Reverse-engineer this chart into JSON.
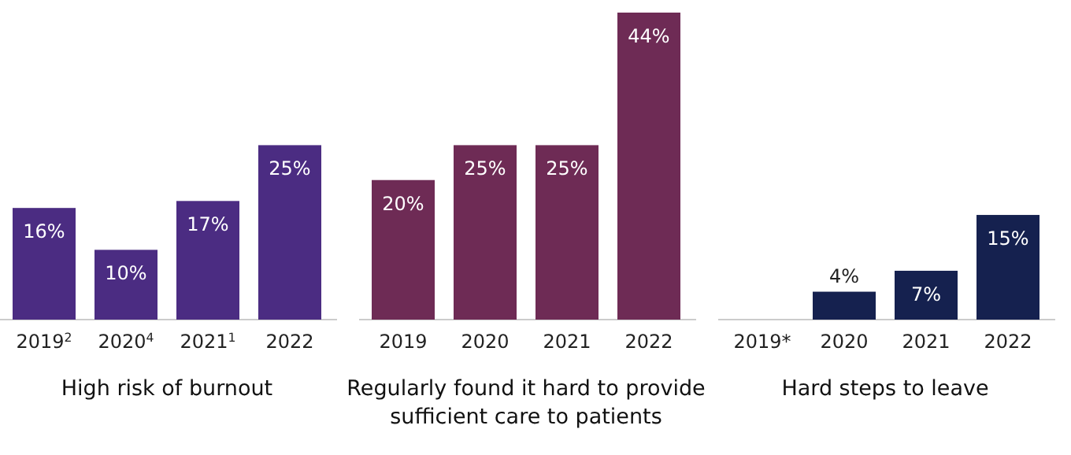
{
  "chart_data": [
    {
      "type": "bar",
      "title": "High risk of burnout",
      "categories": [
        "2019$^{2}$",
        "2020$^{4}$",
        "2021$^{1}$",
        "2022"
      ],
      "values": [
        16,
        10,
        17,
        25
      ],
      "color": "#4b2c82",
      "value_labels": [
        "16%",
        "10%",
        "17%",
        "25%"
      ]
    },
    {
      "type": "bar",
      "title": "Regularly found it hard to provide sufficient care to patients",
      "categories": [
        "2019",
        "2020",
        "2021",
        "2022"
      ],
      "values": [
        20,
        25,
        25,
        44
      ],
      "color": "#6e2b55",
      "value_labels": [
        "20%",
        "25%",
        "25%",
        "44%"
      ]
    },
    {
      "type": "bar",
      "title": "Hard steps to leave",
      "categories": [
        "2019*",
        "2020",
        "2021",
        "2022"
      ],
      "values": [
        null,
        4,
        7,
        15
      ],
      "color": "#15214f",
      "value_labels": [
        null,
        "4%",
        "7%",
        "15%"
      ]
    }
  ]
}
